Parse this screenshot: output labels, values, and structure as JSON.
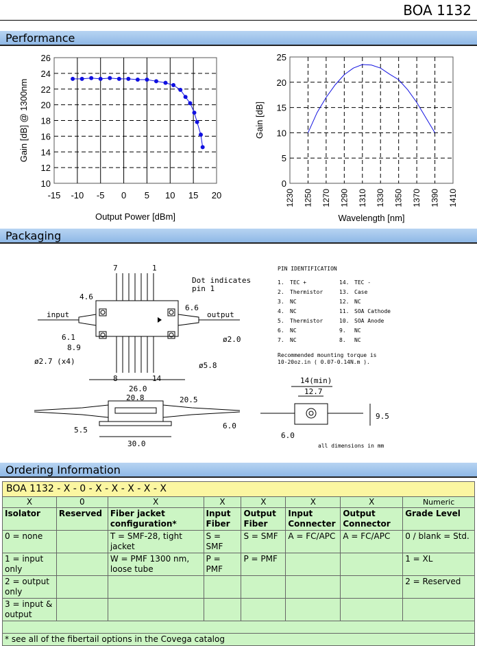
{
  "header": {
    "title": "BOA 1132"
  },
  "sections": {
    "performance": "Performance",
    "packaging": "Packaging",
    "ordering": "Ordering Information"
  },
  "chart_data": [
    {
      "type": "line",
      "title": "",
      "xlabel": "Output Power [dBm]",
      "ylabel": "Gain [dB] @ 1300nm",
      "xlim": [
        -15,
        20
      ],
      "ylim": [
        10,
        26
      ],
      "xticks": [
        "-15",
        "-10",
        "-5",
        "0",
        "5",
        "10",
        "15",
        "20"
      ],
      "yticks": [
        "10",
        "12",
        "14",
        "16",
        "18",
        "20",
        "22",
        "24",
        "26"
      ],
      "grid": true,
      "color": "#1010e0",
      "x": [
        -11,
        -9,
        -7,
        -5,
        -3,
        -1,
        1,
        3,
        5,
        7,
        9,
        10.7,
        12.2,
        13.3,
        14.3,
        15.2,
        15.8,
        16.6,
        17
      ],
      "y": [
        23.3,
        23.3,
        23.4,
        23.3,
        23.4,
        23.3,
        23.3,
        23.2,
        23.2,
        23.0,
        22.8,
        22.5,
        21.9,
        21.0,
        20.2,
        19.0,
        17.8,
        16.2,
        14.6
      ]
    },
    {
      "type": "line",
      "title": "",
      "xlabel": "Wavelength [nm]",
      "ylabel": "Gain [dB]",
      "xlim": [
        1230,
        1410
      ],
      "ylim": [
        0,
        25
      ],
      "xticks": [
        "1230",
        "1250",
        "1270",
        "1290",
        "1310",
        "1330",
        "1350",
        "1370",
        "1390",
        "1410"
      ],
      "yticks": [
        "0",
        "5",
        "10",
        "15",
        "20",
        "25"
      ],
      "grid": true,
      "color": "#1010e0",
      "x": [
        1250,
        1260,
        1270,
        1280,
        1290,
        1300,
        1310,
        1320,
        1330,
        1340,
        1350,
        1360,
        1370,
        1380,
        1390
      ],
      "y": [
        10,
        14,
        17,
        19.5,
        21.5,
        22.8,
        23.5,
        23.4,
        22.8,
        21.6,
        20.5,
        18.5,
        16,
        13,
        10
      ]
    }
  ],
  "packaging": {
    "pin_title": "PIN IDENTIFICATION",
    "pins": [
      [
        "1.",
        "TEC +",
        "14.",
        "TEC -"
      ],
      [
        "2.",
        "Thermistor",
        "13.",
        "Case"
      ],
      [
        "3.",
        "NC",
        "12.",
        "NC"
      ],
      [
        "4.",
        "NC",
        "11.",
        "SOA Cathode"
      ],
      [
        "5.",
        "Thermistor",
        "10.",
        "SOA Anode"
      ],
      [
        "6.",
        "NC",
        "9.",
        "NC"
      ],
      [
        "7.",
        "NC",
        "8.",
        "NC"
      ]
    ],
    "torque": [
      "Recommended mounting torque is",
      "10-20oz.in ( 0.07-0.14N.m )."
    ],
    "labels": {
      "pin7": "7",
      "pin1": "1",
      "pin8": "8",
      "pin14": "14",
      "dot": "Dot indicates",
      "dot2": "pin 1",
      "input": "input",
      "output": "output",
      "d46": "4.6",
      "d66": "6.6",
      "d61": "6.1",
      "d89": "8.9",
      "d27": "ø2.7 (x4)",
      "d20": "ø2.0",
      "d58": "ø5.8",
      "d260": "26.0",
      "d208": "20.8",
      "d205": "20.5",
      "d55": "5.5",
      "d60": "6.0",
      "d300": "30.0",
      "d14": "14(min)",
      "d127": "12.7",
      "d95": "9.5",
      "d60b": "6.0",
      "units": "all dimensions in mm"
    }
  },
  "ordering": {
    "code": "BOA 1132 - X - 0 - X - X - X - X - X",
    "codes": [
      "X",
      "0",
      "X",
      "X",
      "X",
      "X",
      "X",
      "Numeric"
    ],
    "headers": [
      "Isolator",
      "Reserved",
      "Fiber jacket configuration*",
      "Input Fiber",
      "Output Fiber",
      "Input Connecter",
      "Output Connector",
      "Grade Level"
    ],
    "rows": [
      [
        "0 = none",
        "",
        "T = SMF-28, tight jacket",
        "S = SMF",
        "S = SMF",
        "A = FC/APC",
        "A = FC/APC",
        "0 / blank = Std."
      ],
      [
        "1 = input only",
        "",
        "W = PMF 1300 nm, loose tube",
        "P = PMF",
        "P = PMF",
        "",
        "",
        "1 = XL"
      ],
      [
        "2 = output only",
        "",
        "",
        "",
        "",
        "",
        "",
        "2 = Reserved"
      ],
      [
        "3 = input & output",
        "",
        "",
        "",
        "",
        "",
        "",
        ""
      ]
    ],
    "footnote": "* see all of the fibertail options in the Covega catalog"
  }
}
